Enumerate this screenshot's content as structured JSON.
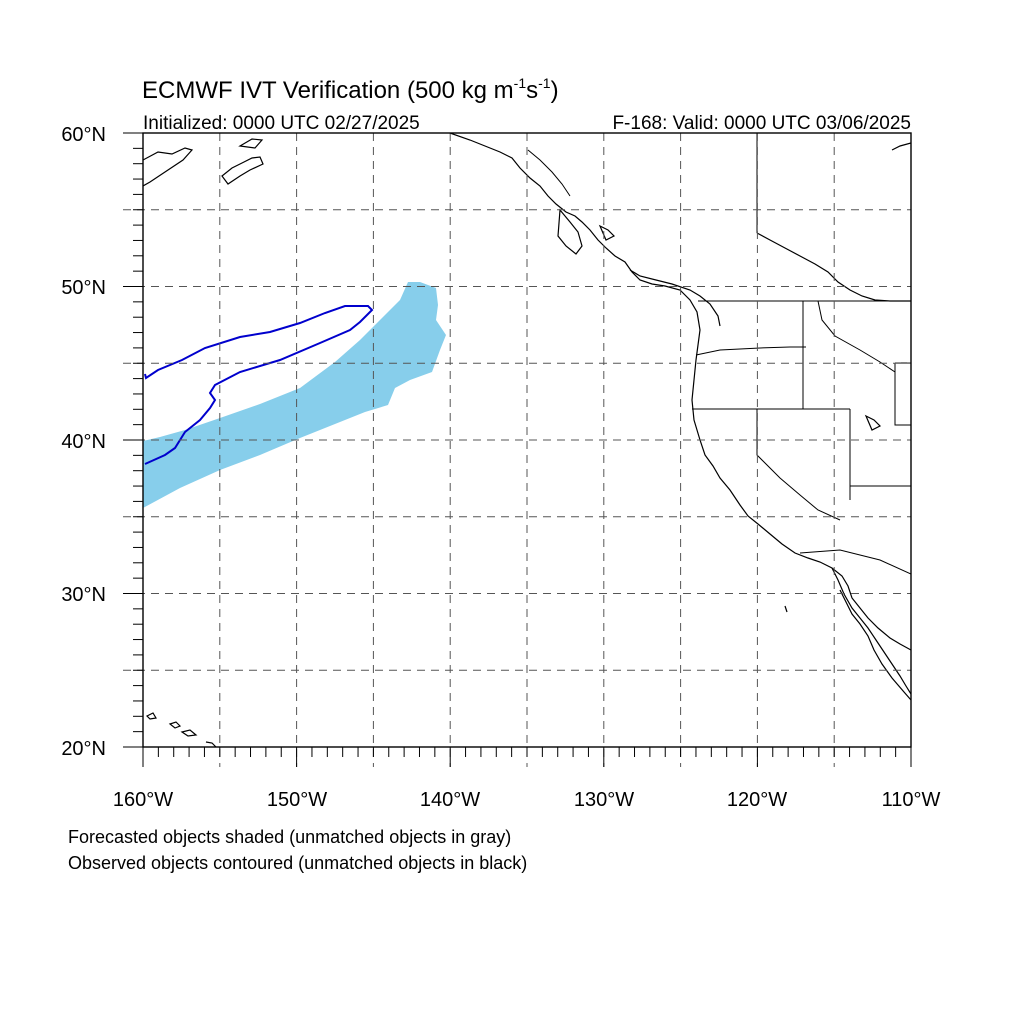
{
  "title": {
    "prefix": "ECMWF IVT Verification (500 kg m",
    "sup1": "-1",
    "mid": "s",
    "sup2": "-1",
    "suffix": ")"
  },
  "initialized": "Initialized: 0000 UTC 02/27/2025",
  "valid": "F-168: Valid: 0000 UTC 03/06/2025",
  "map": {
    "lon_range": [
      -160,
      -110
    ],
    "lat_range": [
      20,
      60
    ],
    "lat_labels": [
      "60°N",
      "50°N",
      "40°N",
      "30°N",
      "20°N"
    ],
    "lon_labels": [
      "160°W",
      "150°W",
      "140°W",
      "130°W",
      "120°W",
      "110°W"
    ],
    "grid_lats": [
      25,
      30,
      35,
      40,
      45,
      50,
      55
    ],
    "grid_lons": [
      -155,
      -150,
      -145,
      -140,
      -135,
      -130,
      -125,
      -120,
      -115
    ]
  },
  "legend": {
    "line1": "Forecasted objects shaded (unmatched objects in gray)",
    "line2": "Observed objects contoured (unmatched objects in black)"
  },
  "colors": {
    "forecast_fill": "#87ceeb",
    "observed_contour": "#0000cd",
    "coastline": "#000000",
    "grid": "#555555"
  }
}
